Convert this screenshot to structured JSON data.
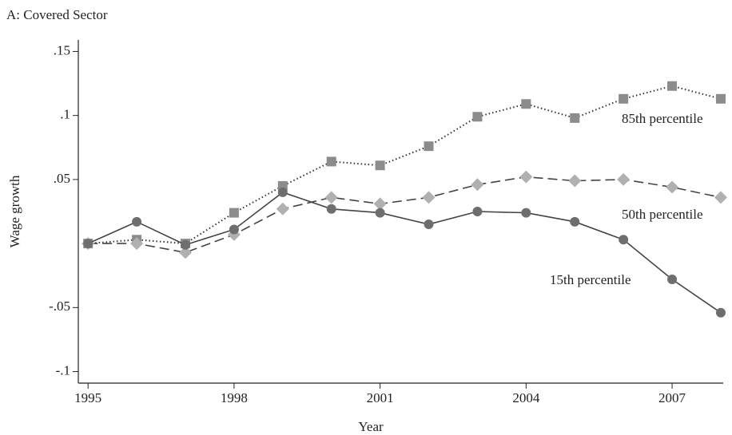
{
  "chart_data": {
    "type": "line",
    "title": "A: Covered Sector",
    "xlabel": "Year",
    "ylabel": "Wage growth",
    "x": [
      1995,
      1996,
      1997,
      1998,
      1999,
      2000,
      2001,
      2002,
      2003,
      2004,
      2005,
      2006,
      2007,
      2008
    ],
    "xlim": [
      1994.8,
      2008.05
    ],
    "xticks": [
      1995,
      1998,
      2001,
      2004,
      2007
    ],
    "ylim": [
      -0.109,
      0.159
    ],
    "yticks": [
      {
        "value": -0.1,
        "label": "-.1"
      },
      {
        "value": -0.05,
        "label": "-.05"
      },
      {
        "value": 0.05,
        "label": ".05"
      },
      {
        "value": 0.1,
        "label": ".1"
      },
      {
        "value": 0.15,
        "label": ".15"
      }
    ],
    "series": [
      {
        "name": "85th percentile",
        "color": "#8c8c8c",
        "marker": "square",
        "linestyle": "dotted",
        "values": [
          0,
          0.003,
          0,
          0.024,
          0.045,
          0.064,
          0.061,
          0.076,
          0.099,
          0.109,
          0.098,
          0.113,
          0.123,
          0.113
        ]
      },
      {
        "name": "50th percentile",
        "color": "#b0b0b0",
        "marker": "diamond",
        "linestyle": "dashed",
        "values": [
          0,
          0,
          -0.007,
          0.007,
          0.027,
          0.036,
          0.031,
          0.036,
          0.046,
          0.052,
          0.049,
          0.05,
          0.044,
          0.036
        ]
      },
      {
        "name": "15th percentile",
        "color": "#6e6e6e",
        "marker": "circle",
        "linestyle": "solid",
        "values": [
          0,
          0.017,
          -0.001,
          0.011,
          0.04,
          0.027,
          0.024,
          0.015,
          0.025,
          0.024,
          0.017,
          0.003,
          -0.028,
          -0.054
        ]
      }
    ]
  }
}
